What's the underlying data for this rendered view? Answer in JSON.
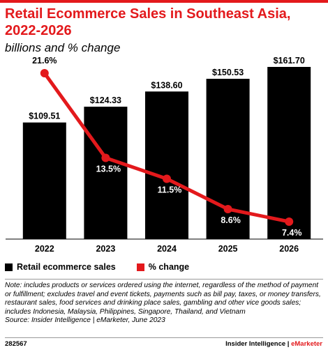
{
  "header": {
    "title": "Retail Ecommerce Sales in Southeast Asia, 2022-2026",
    "subtitle": "billions and % change"
  },
  "chart_data": {
    "type": "bar",
    "categories": [
      "2022",
      "2023",
      "2024",
      "2025",
      "2026"
    ],
    "series": [
      {
        "name": "Retail ecommerce sales",
        "kind": "bar",
        "values": [
          109.51,
          124.33,
          138.6,
          150.53,
          161.7
        ],
        "labels": [
          "$109.51",
          "$124.33",
          "$138.60",
          "$150.53",
          "$161.70"
        ],
        "color": "#000000"
      },
      {
        "name": "% change",
        "kind": "line",
        "values": [
          21.6,
          13.5,
          11.5,
          8.6,
          7.4
        ],
        "labels": [
          "21.6%",
          "13.5%",
          "11.5%",
          "8.6%",
          "7.4%"
        ],
        "color": "#e3191c"
      }
    ],
    "legend_position": "bottom-left",
    "grid": false
  },
  "legend": {
    "items": [
      {
        "label": "Retail ecommerce sales",
        "color": "#000000"
      },
      {
        "label": "% change",
        "color": "#e3191c"
      }
    ]
  },
  "note": {
    "text": "Note: includes products or services ordered using the internet, regardless of the method of payment or fulfillment; excludes travel and event tickets, payments such as bill pay, taxes, or money transfers, restaurant sales, food services and drinking place sales, gambling and other vice goods sales; includes Indonesia, Malaysia, Philippines, Singapore, Thailand, and Vietnam",
    "source": "Source: Insider Intelligence | eMarketer, June 2023"
  },
  "footer": {
    "id": "282567",
    "brand_main": "Insider Intelligence | ",
    "brand_accent": "eMarketer"
  }
}
